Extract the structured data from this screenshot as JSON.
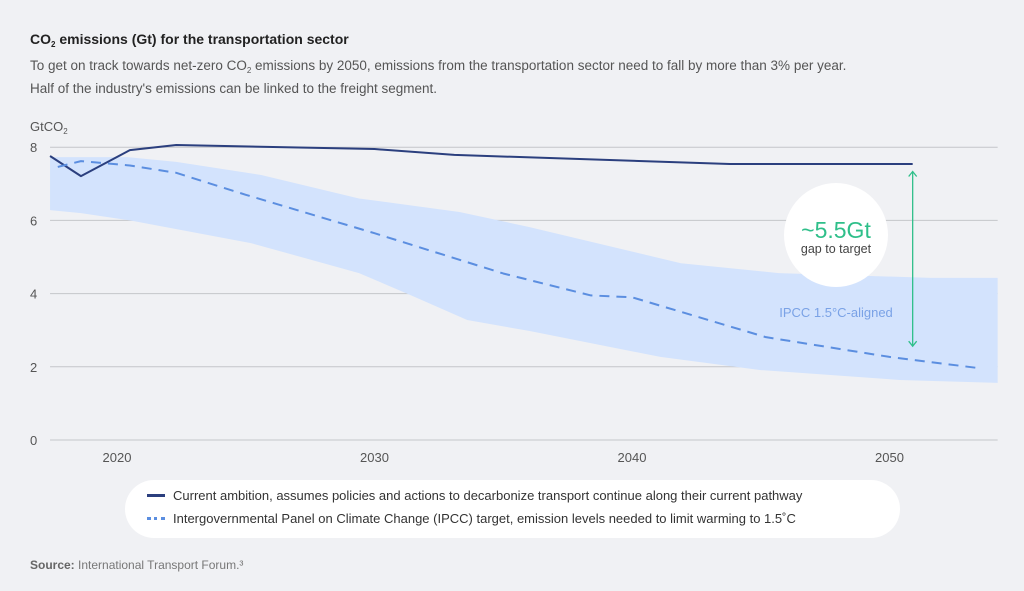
{
  "header": {
    "title_prefix": "CO",
    "title_sub": "2",
    "title_suffix": " emissions (Gt) for the transportation sector",
    "subtitle_line1_prefix": "To get on track towards net-zero CO",
    "subtitle_line1_sub": "2",
    "subtitle_line1_suffix": " emissions by 2050, emissions from the transportation sector need to fall by more than 3% per year.",
    "subtitle_line2": "Half of the industry's emissions can be linked to the freight segment."
  },
  "chart_data": {
    "type": "line",
    "title": "CO2 emissions (Gt) for the transportation sector",
    "ylabel_prefix": "GtCO",
    "ylabel_sub": "2",
    "xlim": [
      2017.4,
      2054.2
    ],
    "ylim": [
      0,
      8
    ],
    "x_ticks": [
      "2020",
      "2030",
      "2040",
      "2050"
    ],
    "y_ticks": [
      "0",
      "2",
      "4",
      "6",
      "8"
    ],
    "grid": "horizontal",
    "series": [
      {
        "name": "Current ambition, assumes policies and actions to decarbonize transport continue along their current pathway",
        "style": "solid",
        "color": "#2b3f7e",
        "x": [
          2017.4,
          2018.6,
          2020.5,
          2022.3,
          2030,
          2033.1,
          2043.8,
          2050.9
        ],
        "y": [
          7.76,
          7.21,
          7.92,
          8.06,
          7.95,
          7.79,
          7.54,
          7.54
        ]
      },
      {
        "name": "Intergovernmental Panel on Climate Change (IPCC) target, emission levels needed to limit warming to 1.5˚C",
        "style": "dashed",
        "color": "#5b8ee0",
        "x": [
          2017.7,
          2018.6,
          2020.5,
          2022.3,
          2025,
          2030,
          2035,
          2038.4,
          2040,
          2045.2,
          2050,
          2053.4
        ],
        "y": [
          7.46,
          7.62,
          7.5,
          7.3,
          6.7,
          5.65,
          4.55,
          3.95,
          3.9,
          2.81,
          2.27,
          1.97
        ]
      }
    ],
    "band": {
      "label": "IPCC 1.5°C-aligned",
      "color": "#d3e3fd",
      "x_upper": [
        2017.4,
        2020.4,
        2022.3,
        2025.6,
        2029.4,
        2033.3,
        2036,
        2041.9,
        2045.7,
        2051.6,
        2054.2
      ],
      "upper": [
        7.73,
        7.73,
        7.6,
        7.24,
        6.6,
        6.23,
        5.82,
        4.83,
        4.56,
        4.43,
        4.43
      ],
      "x_lower": [
        2017.4,
        2018.6,
        2020.5,
        2025.2,
        2029.4,
        2031.4,
        2033.6,
        2036,
        2041.1,
        2045,
        2050.4,
        2054.2
      ],
      "lower": [
        6.28,
        6.2,
        6.0,
        5.38,
        4.56,
        3.96,
        3.28,
        2.98,
        2.27,
        1.91,
        1.64,
        1.56
      ]
    },
    "annotation": {
      "value": "~5.5Gt",
      "text": "gap to target",
      "color": "#2fbf8a",
      "x": 2050.9,
      "y_from": 7.5,
      "y_to": 2.4
    },
    "legend": "bottom"
  },
  "source": {
    "label": "Source:",
    "text": " International Transport Forum.³"
  }
}
